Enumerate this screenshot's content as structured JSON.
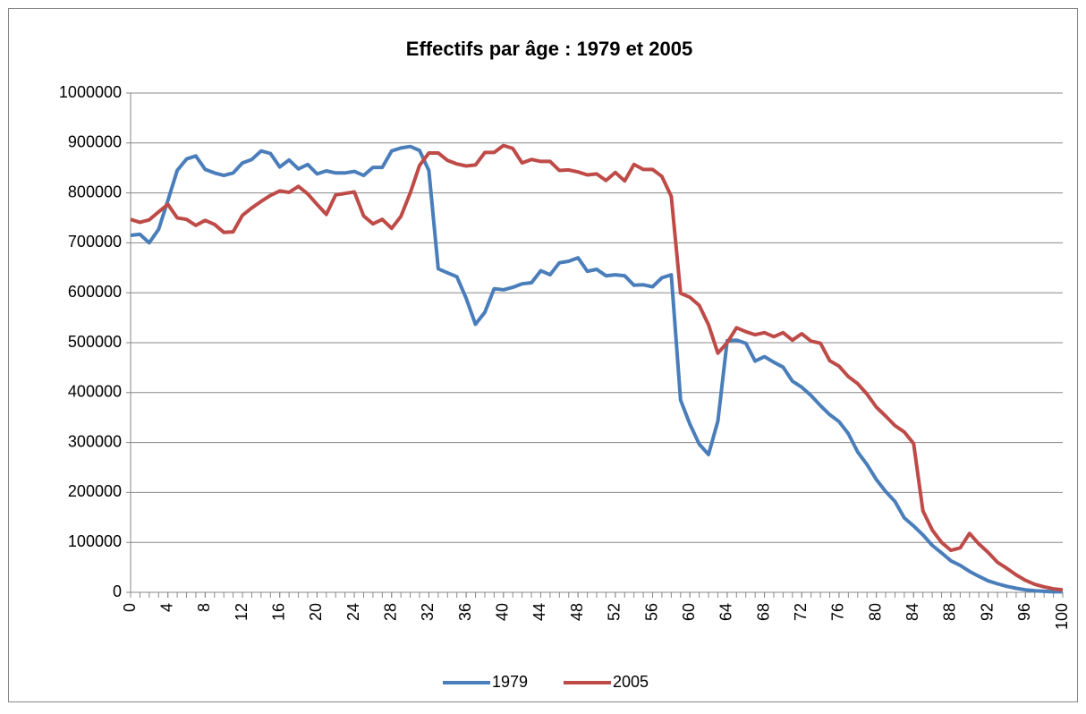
{
  "chart_data": {
    "type": "line",
    "title": "Effectifs par âge : 1979 et 2005",
    "x": [
      0,
      1,
      2,
      3,
      4,
      5,
      6,
      7,
      8,
      9,
      10,
      11,
      12,
      13,
      14,
      15,
      16,
      17,
      18,
      19,
      20,
      21,
      22,
      23,
      24,
      25,
      26,
      27,
      28,
      29,
      30,
      31,
      32,
      33,
      34,
      35,
      36,
      37,
      38,
      39,
      40,
      41,
      42,
      43,
      44,
      45,
      46,
      47,
      48,
      49,
      50,
      51,
      52,
      53,
      54,
      55,
      56,
      57,
      58,
      59,
      60,
      61,
      62,
      63,
      64,
      65,
      66,
      67,
      68,
      69,
      70,
      71,
      72,
      73,
      74,
      75,
      76,
      77,
      78,
      79,
      80,
      81,
      82,
      83,
      84,
      85,
      86,
      87,
      88,
      89,
      90,
      91,
      92,
      93,
      94,
      95,
      96,
      97,
      98,
      99,
      100
    ],
    "xlim": [
      0,
      100
    ],
    "xticks": [
      0,
      4,
      8,
      12,
      16,
      20,
      24,
      28,
      32,
      36,
      40,
      44,
      48,
      52,
      56,
      60,
      64,
      68,
      72,
      76,
      80,
      84,
      88,
      92,
      96,
      100
    ],
    "ylim": [
      0,
      1000000
    ],
    "yticks": [
      0,
      100000,
      200000,
      300000,
      400000,
      500000,
      600000,
      700000,
      800000,
      900000,
      1000000
    ],
    "grid": true,
    "legend": "bottom",
    "series": [
      {
        "name": "1979",
        "color": "#4a7ebb",
        "values": [
          715000,
          717000,
          700000,
          727000,
          785000,
          845000,
          868000,
          874000,
          847000,
          840000,
          835000,
          840000,
          860000,
          867000,
          884000,
          879000,
          852000,
          866000,
          848000,
          857000,
          838000,
          844000,
          840000,
          840000,
          843000,
          835000,
          851000,
          851000,
          884000,
          890000,
          893000,
          885000,
          845000,
          648000,
          640000,
          632000,
          589000,
          537000,
          561000,
          608000,
          606000,
          611000,
          618000,
          620000,
          644000,
          636000,
          660000,
          663000,
          670000,
          643000,
          647000,
          634000,
          636000,
          634000,
          615000,
          616000,
          612000,
          630000,
          636000,
          385000,
          337000,
          297000,
          276000,
          343000,
          504000,
          505000,
          499000,
          463000,
          472000,
          461000,
          451000,
          423000,
          411000,
          394000,
          374000,
          356000,
          342000,
          318000,
          281000,
          256000,
          226000,
          202000,
          182000,
          149000,
          133000,
          115000,
          94000,
          79000,
          63000,
          54000,
          42000,
          32000,
          23000,
          17000,
          12000,
          8000,
          5000,
          3000,
          2000,
          1000,
          1000
        ]
      },
      {
        "name": "2005",
        "color": "#be4b48",
        "values": [
          747000,
          741000,
          746000,
          762000,
          777000,
          750000,
          747000,
          735000,
          745000,
          737000,
          721000,
          722000,
          755000,
          770000,
          783000,
          795000,
          804000,
          801000,
          813000,
          798000,
          777000,
          757000,
          796000,
          799000,
          802000,
          754000,
          738000,
          747000,
          729000,
          753000,
          800000,
          855000,
          880000,
          880000,
          865000,
          858000,
          854000,
          856000,
          881000,
          881000,
          895000,
          889000,
          860000,
          867000,
          863000,
          863000,
          845000,
          846000,
          842000,
          836000,
          838000,
          825000,
          841000,
          824000,
          857000,
          847000,
          847000,
          833000,
          793000,
          599000,
          591000,
          575000,
          536000,
          479000,
          500000,
          530000,
          522000,
          516000,
          520000,
          512000,
          520000,
          505000,
          518000,
          503000,
          499000,
          464000,
          453000,
          432000,
          418000,
          397000,
          371000,
          353000,
          334000,
          321000,
          298000,
          163000,
          125000,
          100000,
          84000,
          89000,
          118000,
          97000,
          80000,
          60000,
          48000,
          35000,
          24000,
          16000,
          11000,
          7000,
          5000
        ]
      }
    ]
  }
}
